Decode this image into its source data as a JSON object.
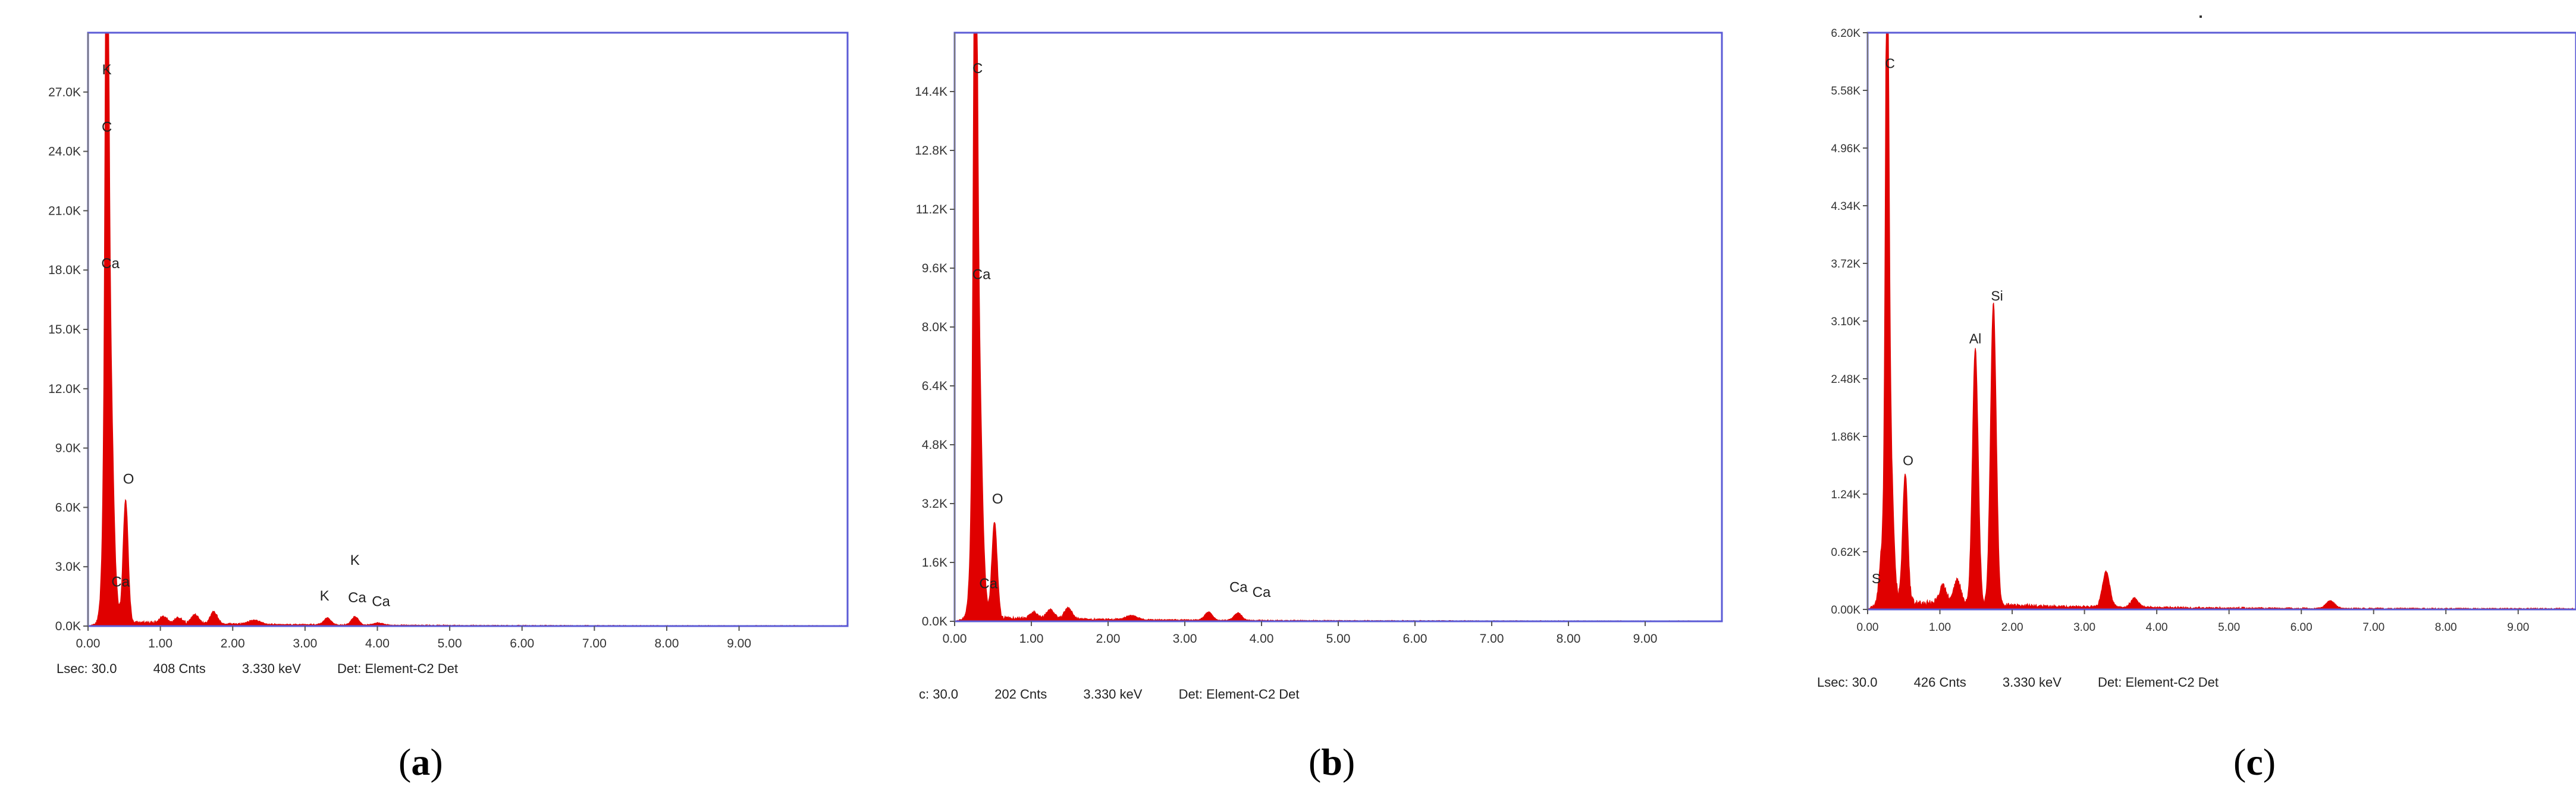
{
  "chart_data": [
    {
      "type": "line",
      "panel_label": "a",
      "x_ticks": [
        "0.00",
        "1.00",
        "2.00",
        "3.00",
        "4.00",
        "5.00",
        "6.00",
        "7.00",
        "8.00",
        "9.00"
      ],
      "y_ticks": [
        "0.0K",
        "3.0K",
        "6.0K",
        "9.0K",
        "12.0K",
        "15.0K",
        "18.0K",
        "21.0K",
        "24.0K",
        "27.0K"
      ],
      "xlim": [
        0,
        10.5
      ],
      "ylim": [
        0,
        30000
      ],
      "line_color": "#e00000",
      "frame_color": "#5b5bd6",
      "status": [
        "Lsec: 30.0",
        "408 Cnts",
        "3.330 keV",
        "Det: Element-C2 Det"
      ],
      "peaks": [
        {
          "x": 0.26,
          "y": 26700,
          "w": 0.022
        },
        {
          "x": 0.28,
          "y": 17000,
          "w": 0.05
        },
        {
          "x": 0.52,
          "y": 6200,
          "w": 0.035
        },
        {
          "x": 0.34,
          "y": 1300,
          "w": 0.06
        },
        {
          "x": 1.04,
          "y": 350,
          "w": 0.05
        },
        {
          "x": 1.25,
          "y": 300,
          "w": 0.05
        },
        {
          "x": 1.48,
          "y": 450,
          "w": 0.05
        },
        {
          "x": 1.74,
          "y": 600,
          "w": 0.05
        },
        {
          "x": 2.3,
          "y": 200,
          "w": 0.08
        },
        {
          "x": 3.31,
          "y": 350,
          "w": 0.05
        },
        {
          "x": 3.69,
          "y": 420,
          "w": 0.05
        },
        {
          "x": 4.01,
          "y": 120,
          "w": 0.06
        }
      ],
      "baseline": 220,
      "labels": [
        {
          "text": "K",
          "x": 0.26,
          "y": 27900
        },
        {
          "text": "C",
          "x": 0.26,
          "y": 25000
        },
        {
          "text": "Ca",
          "x": 0.31,
          "y": 18100
        },
        {
          "text": "O",
          "x": 0.56,
          "y": 7200
        },
        {
          "text": "Ca",
          "x": 0.45,
          "y": 2000
        },
        {
          "text": "K",
          "x": 3.27,
          "y": 1300
        },
        {
          "text": "K",
          "x": 3.69,
          "y": 3100
        },
        {
          "text": "Ca",
          "x": 3.72,
          "y": 1200
        },
        {
          "text": "Ca",
          "x": 4.05,
          "y": 1000
        }
      ]
    },
    {
      "type": "line",
      "panel_label": "b",
      "x_ticks": [
        "0.00",
        "1.00",
        "2.00",
        "3.00",
        "4.00",
        "5.00",
        "6.00",
        "7.00",
        "8.00",
        "9.00"
      ],
      "y_ticks": [
        "0.0K",
        "1.6K",
        "3.2K",
        "4.8K",
        "6.4K",
        "8.0K",
        "9.6K",
        "11.2K",
        "12.8K",
        "14.4K"
      ],
      "xlim": [
        0,
        10.0
      ],
      "ylim": [
        0,
        16000
      ],
      "line_color": "#e00000",
      "frame_color": "#5b5bd6",
      "status": [
        "c: 30.0",
        "202 Cnts",
        "3.330 keV",
        "Det: Element-C2 Det"
      ],
      "peaks": [
        {
          "x": 0.27,
          "y": 14200,
          "w": 0.022
        },
        {
          "x": 0.29,
          "y": 9000,
          "w": 0.05
        },
        {
          "x": 0.52,
          "y": 2600,
          "w": 0.035
        },
        {
          "x": 0.34,
          "y": 600,
          "w": 0.06
        },
        {
          "x": 1.04,
          "y": 180,
          "w": 0.05
        },
        {
          "x": 1.25,
          "y": 250,
          "w": 0.05
        },
        {
          "x": 1.48,
          "y": 300,
          "w": 0.05
        },
        {
          "x": 2.3,
          "y": 100,
          "w": 0.08
        },
        {
          "x": 3.31,
          "y": 220,
          "w": 0.05
        },
        {
          "x": 3.69,
          "y": 200,
          "w": 0.05
        }
      ],
      "baseline": 110,
      "labels": [
        {
          "text": "C",
          "x": 0.3,
          "y": 14900
        },
        {
          "text": "Ca",
          "x": 0.35,
          "y": 9300
        },
        {
          "text": "O",
          "x": 0.56,
          "y": 3200
        },
        {
          "text": "Ca",
          "x": 0.44,
          "y": 900
        },
        {
          "text": "Ca",
          "x": 3.7,
          "y": 800
        },
        {
          "text": "Ca",
          "x": 4.0,
          "y": 660
        }
      ]
    },
    {
      "type": "line",
      "panel_label": "c",
      "x_ticks": [
        "0.00",
        "1.00",
        "2.00",
        "3.00",
        "4.00",
        "5.00",
        "6.00",
        "7.00",
        "8.00",
        "9.00"
      ],
      "y_ticks": [
        "0.00K",
        "0.62K",
        "1.24K",
        "1.86K",
        "2.48K",
        "3.10K",
        "3.72K",
        "4.34K",
        "4.96K",
        "5.58K",
        "6.20K"
      ],
      "xlim": [
        0,
        9.8
      ],
      "ylim": [
        0,
        6200
      ],
      "line_color": "#e00000",
      "frame_color": "#5b5bd6",
      "status": [
        "Lsec: 30.0",
        "426 Cnts",
        "3.330 keV",
        "Det: Element-C2 Det"
      ],
      "peaks": [
        {
          "x": 0.27,
          "y": 5700,
          "w": 0.022
        },
        {
          "x": 0.29,
          "y": 2300,
          "w": 0.05
        },
        {
          "x": 0.52,
          "y": 1400,
          "w": 0.035
        },
        {
          "x": 0.18,
          "y": 300,
          "w": 0.03
        },
        {
          "x": 1.04,
          "y": 200,
          "w": 0.05
        },
        {
          "x": 1.24,
          "y": 260,
          "w": 0.05
        },
        {
          "x": 1.49,
          "y": 2750,
          "w": 0.04
        },
        {
          "x": 1.74,
          "y": 3250,
          "w": 0.04
        },
        {
          "x": 3.3,
          "y": 380,
          "w": 0.05
        },
        {
          "x": 3.69,
          "y": 100,
          "w": 0.05
        },
        {
          "x": 6.4,
          "y": 80,
          "w": 0.06
        }
      ],
      "baseline": 90,
      "labels": [
        {
          "text": "C",
          "x": 0.31,
          "y": 5820
        },
        {
          "text": "O",
          "x": 0.56,
          "y": 1550
        },
        {
          "text": "Al",
          "x": 1.49,
          "y": 2860
        },
        {
          "text": "Si",
          "x": 1.79,
          "y": 3320
        },
        {
          "text": "S",
          "x": 0.12,
          "y": 280
        }
      ]
    }
  ]
}
